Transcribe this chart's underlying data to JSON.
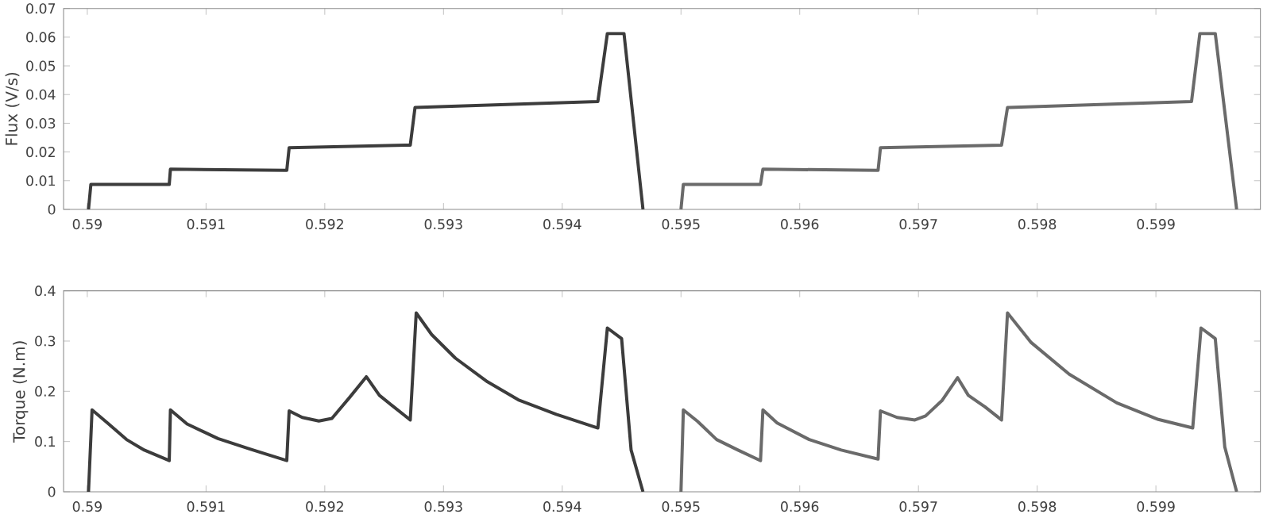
{
  "chart_data": [
    {
      "type": "line",
      "ylabel": "Flux (V/s)",
      "xlim": [
        0.5898,
        0.59988
      ],
      "ylim": [
        0,
        0.07
      ],
      "xticks": [
        0.59,
        0.591,
        0.592,
        0.593,
        0.594,
        0.595,
        0.596,
        0.597,
        0.598,
        0.599
      ],
      "yticks": [
        0,
        0.01,
        0.02,
        0.03,
        0.04,
        0.05,
        0.06,
        0.07
      ],
      "series": [
        {
          "color": "#3c3c3c",
          "x": [
            0.59001,
            0.59003,
            0.59069,
            0.5907,
            0.59168,
            0.5917,
            0.59272,
            0.59276,
            0.5943,
            0.59438,
            0.59452,
            0.59468
          ],
          "values": [
            0,
            0.0087,
            0.0087,
            0.014,
            0.0136,
            0.0215,
            0.0224,
            0.0355,
            0.0376,
            0.0613,
            0.0613,
            0
          ]
        },
        {
          "color": "#6a6a6a",
          "x": [
            0.595,
            0.59502,
            0.59567,
            0.59569,
            0.59666,
            0.59668,
            0.5977,
            0.59775,
            0.5993,
            0.59937,
            0.5995,
            0.59968
          ],
          "values": [
            0,
            0.0087,
            0.0087,
            0.014,
            0.0136,
            0.0215,
            0.0224,
            0.0355,
            0.0376,
            0.0613,
            0.0613,
            0
          ]
        }
      ]
    },
    {
      "type": "line",
      "ylabel": "Torque (N.m)",
      "xlim": [
        0.5898,
        0.59988
      ],
      "ylim": [
        0,
        0.4
      ],
      "xticks": [
        0.59,
        0.591,
        0.592,
        0.593,
        0.594,
        0.595,
        0.596,
        0.597,
        0.598,
        0.599
      ],
      "yticks": [
        0,
        0.1,
        0.2,
        0.3,
        0.4
      ],
      "series": [
        {
          "color": "#3c3c3c",
          "x": [
            0.59001,
            0.59004,
            0.59017,
            0.59033,
            0.59048,
            0.59069,
            0.5907,
            0.59084,
            0.5911,
            0.59137,
            0.59168,
            0.5917,
            0.59181,
            0.59195,
            0.59206,
            0.59221,
            0.59235,
            0.59246,
            0.59257,
            0.59272,
            0.59277,
            0.5929,
            0.5931,
            0.59337,
            0.59363,
            0.59395,
            0.5943,
            0.59438,
            0.5945,
            0.59458,
            0.59468
          ],
          "values": [
            0,
            0.163,
            0.137,
            0.104,
            0.083,
            0.062,
            0.163,
            0.135,
            0.106,
            0.085,
            0.062,
            0.161,
            0.148,
            0.141,
            0.146,
            0.188,
            0.229,
            0.192,
            0.171,
            0.143,
            0.356,
            0.313,
            0.266,
            0.219,
            0.183,
            0.154,
            0.127,
            0.326,
            0.305,
            0.083,
            0
          ]
        },
        {
          "color": "#6a6a6a",
          "x": [
            0.595,
            0.59502,
            0.59514,
            0.5953,
            0.59548,
            0.59567,
            0.59569,
            0.59581,
            0.59608,
            0.59635,
            0.59666,
            0.59668,
            0.59682,
            0.59697,
            0.59706,
            0.5972,
            0.59733,
            0.59742,
            0.59756,
            0.5977,
            0.59775,
            0.59795,
            0.59827,
            0.59867,
            0.59902,
            0.59931,
            0.59938,
            0.5995,
            0.59958,
            0.59968
          ],
          "values": [
            0,
            0.163,
            0.14,
            0.104,
            0.083,
            0.062,
            0.163,
            0.137,
            0.104,
            0.083,
            0.065,
            0.161,
            0.148,
            0.143,
            0.151,
            0.182,
            0.227,
            0.192,
            0.169,
            0.143,
            0.356,
            0.297,
            0.234,
            0.177,
            0.144,
            0.127,
            0.326,
            0.305,
            0.089,
            0
          ]
        }
      ]
    }
  ]
}
